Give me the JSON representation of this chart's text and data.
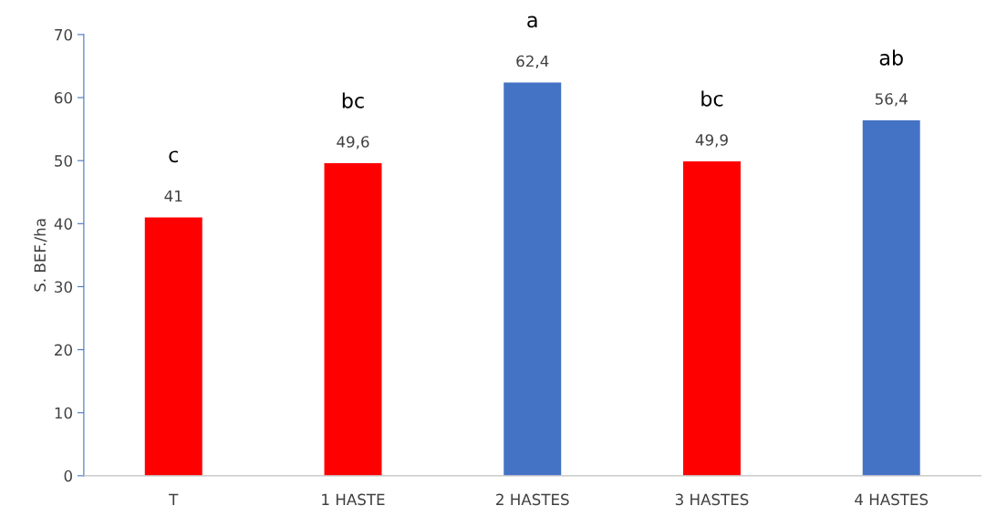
{
  "chart_data": {
    "type": "bar",
    "ylabel": "S. BEF./ha",
    "categories": [
      "T",
      "1 HASTE",
      "2 HASTES",
      "3 HASTES",
      "4 HASTES"
    ],
    "values": [
      41,
      49.6,
      62.4,
      49.9,
      56.4
    ],
    "colors": [
      "#ff0000",
      "#ff0000",
      "#4472c4",
      "#ff0000",
      "#4472c4"
    ],
    "value_labels": [
      "41",
      "49,6",
      "62,4",
      "49,9",
      "56,4"
    ],
    "ylim": [
      0,
      70
    ],
    "yticks": [
      0,
      10,
      20,
      30,
      40,
      50,
      60,
      70
    ],
    "grid": false,
    "legend": false,
    "annotations": [
      "c",
      "bc",
      "a",
      "bc",
      "ab"
    ]
  }
}
